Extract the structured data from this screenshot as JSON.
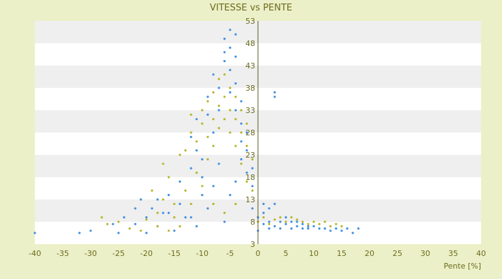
{
  "chart_data": {
    "type": "scatter",
    "title": "VITESSE vs PENTE",
    "xlabel": "Pente [%]",
    "ylabel": "",
    "xlim": [
      -40,
      40
    ],
    "ylim": [
      3,
      53
    ],
    "x_ticks": [
      -40,
      -35,
      -30,
      -25,
      -20,
      -15,
      -10,
      -5,
      0,
      5,
      10,
      15,
      20,
      25,
      30,
      35,
      40
    ],
    "y_ticks": [
      3,
      8,
      13,
      18,
      23,
      28,
      33,
      38,
      43,
      48,
      53
    ],
    "grid": "horizontal bands",
    "legend": "none",
    "colors": {
      "background": "#ecf0c8",
      "band_light": "#ffffff",
      "band_dark": "#efefef",
      "axis_text": "#6b6b1e",
      "series_a": "#3f8fe0",
      "series_b": "#b5b52a"
    },
    "series": [
      {
        "color": "#3f8fe0",
        "points": [
          [
            -40,
            5.5
          ],
          [
            -32,
            5.5
          ],
          [
            -30,
            6
          ],
          [
            -25,
            5.5
          ],
          [
            -24,
            9
          ],
          [
            -22,
            7.5
          ],
          [
            -21,
            13
          ],
          [
            -20,
            5.5
          ],
          [
            -19,
            11
          ],
          [
            -18,
            7
          ],
          [
            -17,
            10
          ],
          [
            -16,
            14
          ],
          [
            -15,
            6
          ],
          [
            -14,
            17
          ],
          [
            -13,
            9
          ],
          [
            -12,
            20
          ],
          [
            -12,
            27
          ],
          [
            -11,
            24
          ],
          [
            -11,
            31
          ],
          [
            -10,
            22
          ],
          [
            -10,
            14
          ],
          [
            -9,
            32
          ],
          [
            -9,
            36
          ],
          [
            -8,
            28
          ],
          [
            -8,
            41
          ],
          [
            -7,
            38
          ],
          [
            -7,
            33
          ],
          [
            -6,
            46
          ],
          [
            -6,
            44
          ],
          [
            -6,
            49
          ],
          [
            -5,
            47
          ],
          [
            -5,
            51
          ],
          [
            -5,
            42
          ],
          [
            -5,
            37
          ],
          [
            -4,
            45
          ],
          [
            -4,
            50
          ],
          [
            -4,
            39
          ],
          [
            -4,
            33
          ],
          [
            -3,
            35
          ],
          [
            -3,
            30
          ],
          [
            -3,
            26
          ],
          [
            -3,
            22
          ],
          [
            -2,
            28
          ],
          [
            -2,
            24
          ],
          [
            -2,
            19
          ],
          [
            -1,
            20
          ],
          [
            -1,
            16
          ],
          [
            -1,
            11
          ],
          [
            0,
            9
          ],
          [
            0,
            6
          ],
          [
            1,
            10
          ],
          [
            1,
            12
          ],
          [
            1,
            7.5
          ],
          [
            2,
            8
          ],
          [
            2,
            11
          ],
          [
            2,
            6.5
          ],
          [
            3,
            7
          ],
          [
            3,
            12
          ],
          [
            3,
            37
          ],
          [
            3,
            36
          ],
          [
            4,
            8
          ],
          [
            4,
            6.5
          ],
          [
            5,
            7.5
          ],
          [
            5,
            9
          ],
          [
            6,
            8
          ],
          [
            6,
            6.5
          ],
          [
            7,
            7
          ],
          [
            7,
            8
          ],
          [
            8,
            6.5
          ],
          [
            8,
            7.5
          ],
          [
            9,
            7
          ],
          [
            9,
            6.5
          ],
          [
            10,
            7
          ],
          [
            11,
            6.5
          ],
          [
            12,
            6.5
          ],
          [
            13,
            6
          ],
          [
            14,
            6.5
          ],
          [
            15,
            6
          ],
          [
            16,
            6.5
          ],
          [
            17,
            5.5
          ],
          [
            18,
            6.5
          ],
          [
            -6,
            8
          ],
          [
            -5,
            14
          ],
          [
            -4,
            17
          ],
          [
            -7,
            21
          ],
          [
            -8,
            16
          ],
          [
            -10,
            18
          ],
          [
            -9,
            11
          ],
          [
            -11,
            7
          ],
          [
            -12,
            9
          ],
          [
            -14,
            12
          ],
          [
            -16,
            10
          ],
          [
            -18,
            13
          ],
          [
            -20,
            9
          ],
          [
            -22,
            11
          ],
          [
            -26,
            7.5
          ]
        ]
      },
      {
        "color": "#b5b52a",
        "points": [
          [
            -28,
            9
          ],
          [
            -27,
            7.5
          ],
          [
            -25,
            8
          ],
          [
            -23,
            6.5
          ],
          [
            -21,
            6
          ],
          [
            -20,
            8.5
          ],
          [
            -19,
            15
          ],
          [
            -18,
            10
          ],
          [
            -17,
            13
          ],
          [
            -17,
            21
          ],
          [
            -16,
            18
          ],
          [
            -15,
            12
          ],
          [
            -15,
            9
          ],
          [
            -14,
            23
          ],
          [
            -13,
            15
          ],
          [
            -13,
            24
          ],
          [
            -12,
            32
          ],
          [
            -12,
            28
          ],
          [
            -11,
            19
          ],
          [
            -11,
            26
          ],
          [
            -10,
            33
          ],
          [
            -10,
            30
          ],
          [
            -9,
            35
          ],
          [
            -9,
            27
          ],
          [
            -9,
            22
          ],
          [
            -8,
            37
          ],
          [
            -8,
            31
          ],
          [
            -8,
            25
          ],
          [
            -7,
            40
          ],
          [
            -7,
            34
          ],
          [
            -7,
            29
          ],
          [
            -6,
            41
          ],
          [
            -6,
            36
          ],
          [
            -6,
            31
          ],
          [
            -5,
            38
          ],
          [
            -5,
            33
          ],
          [
            -5,
            28
          ],
          [
            -4,
            36
          ],
          [
            -4,
            31
          ],
          [
            -4,
            25
          ],
          [
            -3,
            33
          ],
          [
            -3,
            28
          ],
          [
            -3,
            21
          ],
          [
            -2,
            30
          ],
          [
            -2,
            25
          ],
          [
            -2,
            17
          ],
          [
            -1,
            22
          ],
          [
            -1,
            15
          ],
          [
            0,
            8
          ],
          [
            1,
            9
          ],
          [
            2,
            7.5
          ],
          [
            3,
            8.5
          ],
          [
            4,
            9
          ],
          [
            5,
            8
          ],
          [
            6,
            9
          ],
          [
            7,
            8.5
          ],
          [
            8,
            8
          ],
          [
            9,
            7.5
          ],
          [
            10,
            8
          ],
          [
            11,
            7.5
          ],
          [
            12,
            8
          ],
          [
            13,
            7
          ],
          [
            14,
            7.5
          ],
          [
            15,
            7
          ],
          [
            -10,
            16
          ],
          [
            -12,
            12
          ],
          [
            -14,
            7
          ],
          [
            -16,
            6
          ],
          [
            -18,
            7
          ],
          [
            -8,
            12
          ],
          [
            -6,
            10
          ],
          [
            -4,
            12
          ]
        ]
      }
    ]
  }
}
